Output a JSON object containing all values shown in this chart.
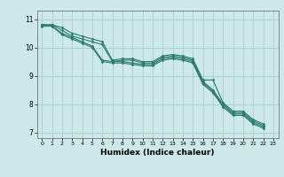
{
  "xlabel": "Humidex (Indice chaleur)",
  "ylabel": "",
  "xlim": [
    -0.5,
    23.5
  ],
  "ylim": [
    6.8,
    11.3
  ],
  "yticks": [
    7,
    8,
    9,
    10,
    11
  ],
  "xticks": [
    0,
    1,
    2,
    3,
    4,
    5,
    6,
    7,
    8,
    9,
    10,
    11,
    12,
    13,
    14,
    15,
    16,
    17,
    18,
    19,
    20,
    21,
    22,
    23
  ],
  "bg_color": "#cce8e8",
  "grid_color": "#aacccc",
  "line_color": "#2a7a6a",
  "lines": [
    [
      10.8,
      10.8,
      10.7,
      10.5,
      10.4,
      10.3,
      10.2,
      9.55,
      9.6,
      9.6,
      9.5,
      9.5,
      9.7,
      9.75,
      9.7,
      9.6,
      8.85,
      8.85,
      8.05,
      7.75,
      7.75,
      7.45,
      7.3
    ],
    [
      10.8,
      10.8,
      10.6,
      10.4,
      10.3,
      10.2,
      10.1,
      9.5,
      9.55,
      9.55,
      9.45,
      9.45,
      9.65,
      9.7,
      9.65,
      9.55,
      8.8,
      8.5,
      8.0,
      7.7,
      7.7,
      7.4,
      7.25
    ],
    [
      10.8,
      10.75,
      10.5,
      10.35,
      10.2,
      10.05,
      9.55,
      9.5,
      9.5,
      9.45,
      9.4,
      9.4,
      9.6,
      9.65,
      9.6,
      9.5,
      8.75,
      8.45,
      7.95,
      7.65,
      7.65,
      7.35,
      7.2
    ],
    [
      10.75,
      10.75,
      10.45,
      10.3,
      10.15,
      10.0,
      9.5,
      9.45,
      9.45,
      9.4,
      9.35,
      9.35,
      9.55,
      9.6,
      9.55,
      9.45,
      8.7,
      8.4,
      7.9,
      7.6,
      7.6,
      7.3,
      7.15
    ]
  ]
}
